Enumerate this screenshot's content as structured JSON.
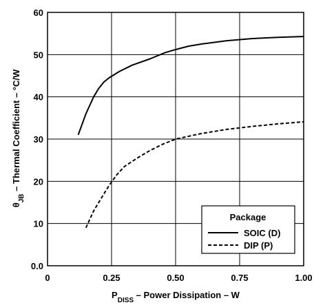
{
  "chart_data": {
    "type": "line",
    "xlabel_main": "P",
    "xlabel_sub": "DISS",
    "xlabel_rest": " – Power Dissipation –  W",
    "ylabel_main": "θ",
    "ylabel_sub": "JB",
    "ylabel_rest": " – Thermal Coefficient – °C/W",
    "xlim": [
      0,
      1.0
    ],
    "ylim": [
      0,
      60
    ],
    "x_ticks": [
      {
        "value": 0,
        "label": "0"
      },
      {
        "value": 0.25,
        "label": "0.25"
      },
      {
        "value": 0.5,
        "label": "0.50"
      },
      {
        "value": 0.75,
        "label": "0.75"
      },
      {
        "value": 1.0,
        "label": "1.00"
      }
    ],
    "y_ticks": [
      {
        "value": 0,
        "label": "0.0"
      },
      {
        "value": 10,
        "label": "10"
      },
      {
        "value": 20,
        "label": "20"
      },
      {
        "value": 30,
        "label": "30"
      },
      {
        "value": 40,
        "label": "40"
      },
      {
        "value": 50,
        "label": "50"
      },
      {
        "value": 60,
        "label": "60"
      }
    ],
    "grid": true,
    "legend": {
      "title": "Package",
      "placement": "bottom-right"
    },
    "series": [
      {
        "name": "SOIC (D)",
        "style": "solid",
        "x": [
          0.12,
          0.15,
          0.18,
          0.2,
          0.22,
          0.24,
          0.28,
          0.33,
          0.4,
          0.46,
          0.5,
          0.55,
          0.6,
          0.7,
          0.8,
          0.9,
          1.0
        ],
        "y": [
          31,
          36,
          40,
          42,
          43.5,
          44.5,
          46,
          47.5,
          49,
          50.5,
          51.2,
          52,
          52.5,
          53.3,
          53.8,
          54.1,
          54.3
        ]
      },
      {
        "name": "DIP (P)",
        "style": "dashed",
        "x": [
          0.15,
          0.18,
          0.21,
          0.24,
          0.27,
          0.3,
          0.35,
          0.4,
          0.45,
          0.5,
          0.6,
          0.7,
          0.8,
          0.9,
          1.0
        ],
        "y": [
          9,
          13,
          16,
          19,
          21.5,
          23.5,
          25.5,
          27.3,
          28.8,
          30,
          31.3,
          32.3,
          33,
          33.6,
          34.1
        ]
      }
    ]
  }
}
